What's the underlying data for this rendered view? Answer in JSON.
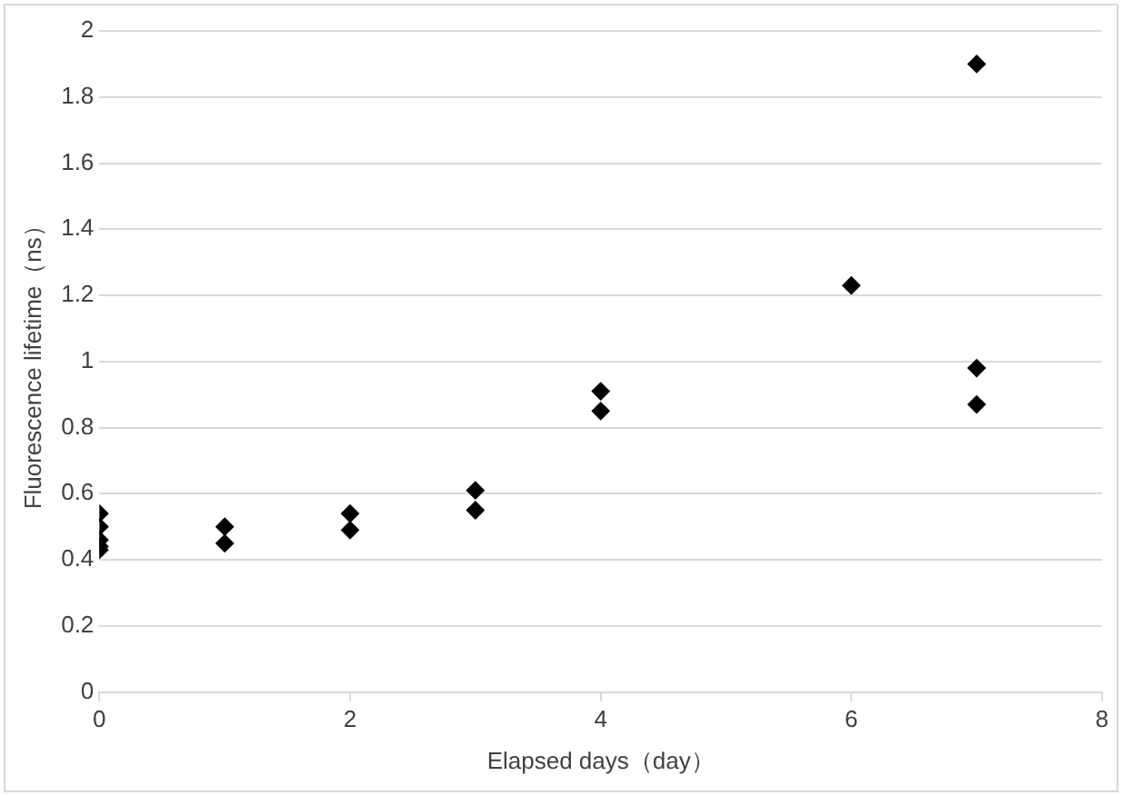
{
  "chart_data": {
    "type": "scatter",
    "xlabel": "Elapsed days（day）",
    "ylabel": "Fluorescence lifetime（ns）",
    "x": [
      0,
      0,
      0,
      0,
      0,
      1,
      1,
      2,
      2,
      3,
      3,
      4,
      4,
      6,
      7,
      7,
      7
    ],
    "series": [
      {
        "color": "#000000",
        "values": [
          0.54,
          0.5,
          0.46,
          0.44,
          0.43,
          0.5,
          0.45,
          0.54,
          0.49,
          0.61,
          0.55,
          0.91,
          0.85,
          1.23,
          1.9,
          0.98,
          0.87
        ]
      }
    ],
    "xlim": [
      0,
      8
    ],
    "xticks": [
      0,
      2,
      4,
      6,
      8
    ],
    "ylim": [
      0,
      2
    ],
    "yticks": [
      0,
      0.2,
      0.4,
      0.6,
      0.8,
      1,
      1.2,
      1.4,
      1.6,
      1.8,
      2
    ],
    "grid": "y",
    "legend": false,
    "marker": "diamond"
  }
}
